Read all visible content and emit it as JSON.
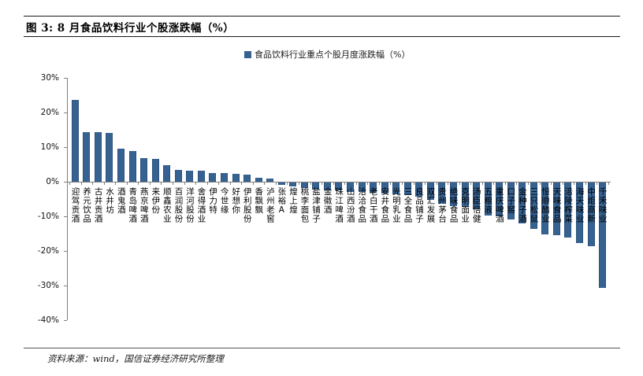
{
  "figure": {
    "title": "图 3:  8 月食品饮料行业个股涨跌幅（%）",
    "source": "资料来源：wind，国信证券经济研究所整理"
  },
  "colors": {
    "bar": "#366292",
    "axis": "#7f7f7f"
  },
  "chart_data": {
    "type": "bar",
    "legend": "食品饮料行业重点个股月度涨跌幅（%）",
    "legend_position": "top",
    "grid": false,
    "ylim": [
      -40,
      30
    ],
    "ytick_labels": [
      "30%",
      "20%",
      "10%",
      "0%",
      "-10%",
      "-20%",
      "-30%",
      "-40%"
    ],
    "ytick_values": [
      30,
      20,
      10,
      0,
      -10,
      -20,
      -30,
      -40
    ],
    "categories": [
      "迎驾贡酒",
      "养元饮品",
      "古井贡酒",
      "水井坊",
      "酒鬼酒",
      "青岛啤酒",
      "燕京啤酒",
      "来伊份",
      "顺鑫农业",
      "百润股份",
      "洋河股份",
      "舍得酒业",
      "伊力特",
      "今世缘",
      "好想你",
      "伊利股份",
      "香飘飘",
      "泸州老窖",
      "张裕A",
      "煌上煌",
      "桃李面包",
      "盐津铺子",
      "金徽酒",
      "珠江啤酒",
      "山西汾酒",
      "洽洽食品",
      "老白干酒",
      "安井食品",
      "光明乳业",
      "三全食品",
      "良品铺子",
      "双汇发展",
      "贵州茅台",
      "绝味食品",
      "克明面业",
      "汤臣倍健",
      "五粮液",
      "重庆啤酒",
      "口子窖",
      "金种子酒",
      "三只松鼠",
      "恒顺醋业",
      "天味食品",
      "涪陵榨菜",
      "海天味业",
      "中炬高新",
      "千禾味业"
    ],
    "values": [
      23.7,
      14.4,
      14.3,
      14.0,
      9.5,
      8.9,
      6.8,
      6.7,
      4.8,
      3.3,
      3.2,
      3.1,
      2.5,
      2.4,
      2.3,
      2.0,
      1.1,
      0.9,
      -0.7,
      -1.1,
      -1.5,
      -2.0,
      -2.2,
      -2.3,
      -2.7,
      -2.8,
      -3.0,
      -3.1,
      -3.3,
      -3.6,
      -4.2,
      -4.9,
      -6.2,
      -6.8,
      -7.0,
      -7.7,
      -9.5,
      -9.8,
      -10.6,
      -11.9,
      -13.4,
      -14.9,
      -15.2,
      -15.9,
      -17.6,
      -18.5,
      -30.5
    ]
  }
}
